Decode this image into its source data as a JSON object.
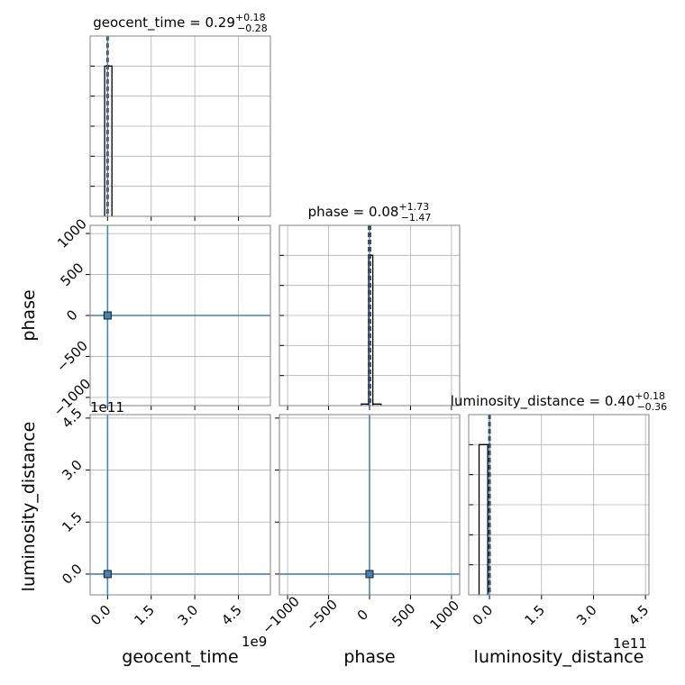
{
  "chart_data": {
    "type": "corner",
    "parameters": [
      "geocent_time",
      "phase",
      "luminosity_distance"
    ],
    "titles": [
      {
        "param": "geocent_time",
        "text": "geocent_time = 0.29",
        "plus": "+0.18",
        "minus": "−0.28"
      },
      {
        "param": "phase",
        "text": "phase = 0.08",
        "plus": "+1.73",
        "minus": "−1.47"
      },
      {
        "param": "luminosity_distance",
        "text": "luminosity_distance = 0.40",
        "plus": "+0.18",
        "minus": "−0.36"
      }
    ],
    "offset_labels": {
      "geocent_time": "1e9",
      "luminosity_distance_x": "1e11",
      "luminosity_distance_y": "1e11"
    },
    "ranges": {
      "geocent_time": [
        -0.6,
        5.6
      ],
      "phase": [
        -1100,
        1100
      ],
      "luminosity_distance": [
        -0.6,
        4.6
      ]
    },
    "ticks": {
      "geocent_time": {
        "values": [
          0,
          1.5,
          3,
          4.5
        ],
        "labels": [
          "0.0",
          "1.5",
          "3.0",
          "4.5"
        ]
      },
      "phase": {
        "values": [
          -1000,
          -500,
          0,
          500,
          1000
        ],
        "labels": [
          "−1000",
          "−500",
          "0",
          "500",
          "1000"
        ]
      },
      "luminosity_distance": {
        "values": [
          0,
          1.5,
          3,
          4.5
        ],
        "labels": [
          "0.0",
          "1.5",
          "3.0",
          "4.5"
        ]
      }
    },
    "histograms": {
      "geocent_time": {
        "bins": [
          [
            -0.1,
            0.15,
            1.0
          ]
        ],
        "median": 0.0,
        "quantiles": [
          -0.02,
          0.02
        ]
      },
      "phase": {
        "bins": [
          [
            -100,
            -10,
            0.01
          ],
          [
            -10,
            40,
            1.0
          ],
          [
            40,
            140,
            0.01
          ]
        ],
        "median": 0.0,
        "quantiles": [
          -12,
          12
        ]
      },
      "luminosity_distance": {
        "bins": [
          [
            -0.3,
            -0.05,
            1.0
          ]
        ],
        "median": 0.0,
        "quantiles": [
          -0.02,
          0.02
        ]
      }
    },
    "truth_color": "#4682b4",
    "truths": {
      "geocent_time": 0.0,
      "phase": 0.0,
      "luminosity_distance": 0.0
    },
    "grid": true
  }
}
